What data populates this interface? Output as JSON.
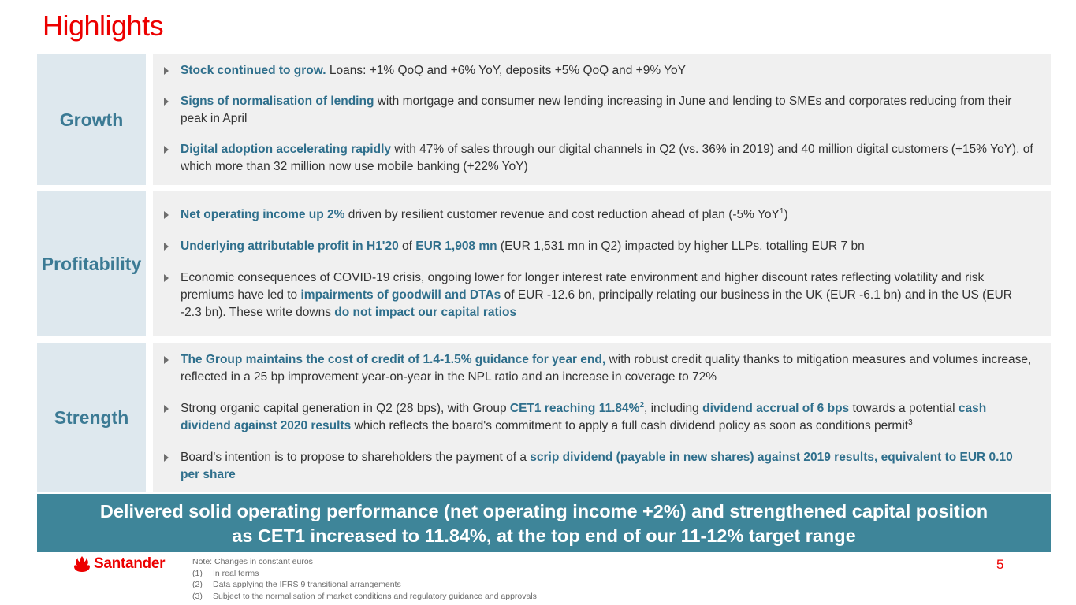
{
  "title": "Highlights",
  "sections": {
    "growth": {
      "label": "Growth",
      "b1": {
        "hl": "Stock continued to grow.",
        "text": " Loans: +1% QoQ and +6% YoY,  deposits +5% QoQ and +9% YoY"
      },
      "b2": {
        "hl": "Signs of normalisation of lending",
        "text": " with mortgage and consumer new lending increasing in June and lending to SMEs and corporates reducing from their peak in April"
      },
      "b3": {
        "hl": "Digital adoption accelerating rapidly",
        "text": " with 47% of sales through our digital channels in Q2 (vs. 36% in 2019) and 40 million digital customers (+15% YoY), of which more than 32 million now use mobile banking (+22% YoY)"
      }
    },
    "profitability": {
      "label": "Profitability",
      "b1": {
        "hl": "Net operating income up 2%",
        "text": " driven by resilient customer revenue and cost reduction ahead of plan (-5% YoY",
        "sup": "1",
        "end": ")"
      },
      "b2": {
        "hl1": "Underlying attributable profit in H1'20",
        "mid": " of ",
        "hl2": "EUR 1,908 mn",
        "text": "  (EUR 1,531 mn in Q2) impacted by higher LLPs, totalling EUR 7 bn"
      },
      "b3": {
        "t1": "Economic consequences of COVID-19 crisis, ongoing lower for longer interest rate environment and higher discount rates reflecting volatility and risk premiums have led to ",
        "hl1": "impairments of goodwill and DTAs",
        "t2": " of EUR -12.6 bn, principally relating our business in the UK (EUR -6.1 bn) and in the US (EUR -2.3 bn). These write downs ",
        "hl2": "do not impact our capital ratios"
      }
    },
    "strength": {
      "label": "Strength",
      "b1": {
        "hl": "The Group maintains the cost of credit of 1.4-1.5% guidance for year end,",
        "text": " with robust credit quality thanks to mitigation measures and volumes increase, reflected in a 25 bp improvement year-on-year in the NPL ratio and an increase in coverage to 72%"
      },
      "b2": {
        "t1": "Strong organic capital generation in Q2 (28 bps), with Group ",
        "hl1": "CET1 reaching 11.84%",
        "sup1": "2",
        "t2": ", including ",
        "hl2": "dividend accrual of 6 bps",
        "t3": " towards a potential ",
        "hl3": "cash dividend against 2020 results",
        "t4": " which reflects the board's commitment to apply a full cash dividend policy as soon as conditions permit",
        "sup2": "3"
      },
      "b3": {
        "t1": "Board's intention is to propose to shareholders the payment of a ",
        "hl": "scrip dividend (payable in new shares) against 2019 results, equivalent to EUR 0.10 per share"
      }
    }
  },
  "banner": {
    "line1": "Delivered solid operating performance (net operating income +2%) and strengthened capital position",
    "line2": "as CET1 increased to 11.84%, at the top end of our 11-12% target range"
  },
  "footer": {
    "logo_text": "Santander",
    "logo_icon": "santander-flame-icon",
    "note_header": "Note: Changes in constant euros",
    "notes": [
      {
        "num": "(1)",
        "text": "In real terms"
      },
      {
        "num": "(2)",
        "text": "Data applying the IFRS 9 transitional arrangements"
      },
      {
        "num": "(3)",
        "text": "Subject to the normalisation of market conditions and regulatory guidance and approvals"
      }
    ],
    "page_number": "5"
  },
  "colors": {
    "brand_red": "#ec0000",
    "accent_teal": "#3e8599",
    "label_blue": "#3b7a94",
    "label_bg": "#dee8ee",
    "content_bg": "#f0f0f0"
  }
}
